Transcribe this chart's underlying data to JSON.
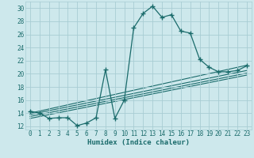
{
  "xlabel": "Humidex (Indice chaleur)",
  "xlim": [
    -0.5,
    23.5
  ],
  "ylim": [
    11.5,
    31.0
  ],
  "xticks": [
    0,
    1,
    2,
    3,
    4,
    5,
    6,
    7,
    8,
    9,
    10,
    11,
    12,
    13,
    14,
    15,
    16,
    17,
    18,
    19,
    20,
    21,
    22,
    23
  ],
  "yticks": [
    12,
    14,
    16,
    18,
    20,
    22,
    24,
    26,
    28,
    30
  ],
  "bg_color": "#cde8ec",
  "grid_color": "#a8cdd4",
  "line_color": "#1a6b6b",
  "curve1_x": [
    0,
    1,
    2,
    3,
    4,
    5,
    6,
    7,
    8,
    9,
    10,
    11,
    12,
    13,
    14,
    15,
    16,
    17,
    18,
    19,
    20,
    21,
    22,
    23
  ],
  "curve1_y": [
    14.3,
    14.0,
    13.2,
    13.3,
    13.3,
    12.1,
    12.5,
    13.3,
    20.6,
    13.2,
    16.0,
    27.0,
    29.2,
    30.3,
    28.6,
    29.0,
    26.5,
    26.2,
    22.2,
    21.0,
    20.3,
    20.3,
    20.5,
    21.2
  ],
  "line1_x": [
    0,
    23
  ],
  "line1_y": [
    14.0,
    21.3
  ],
  "line2_x": [
    0,
    23
  ],
  "line2_y": [
    13.8,
    20.5
  ],
  "line3_x": [
    0,
    23
  ],
  "line3_y": [
    13.5,
    20.1
  ],
  "line4_x": [
    0,
    23
  ],
  "line4_y": [
    13.2,
    19.8
  ]
}
